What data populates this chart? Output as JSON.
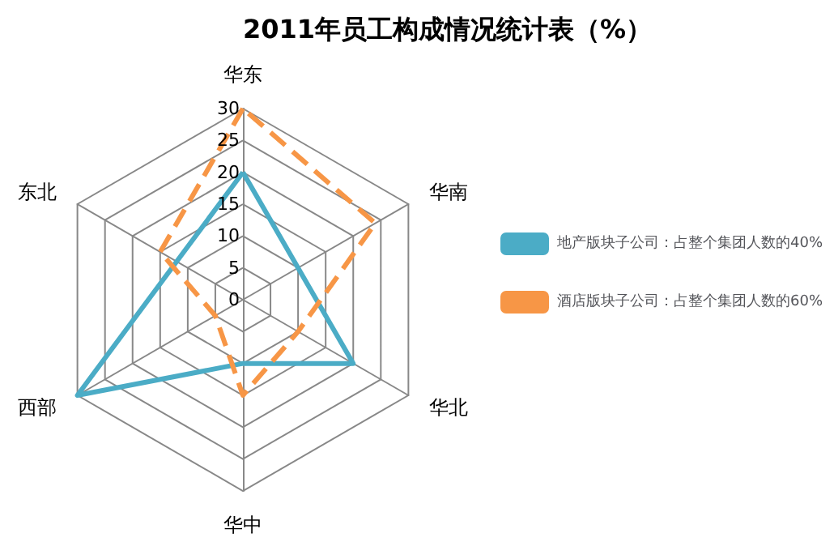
{
  "chart_data": {
    "type": "radar",
    "title": "2011年员工构成情况统计表（%）",
    "categories": [
      "华东",
      "华南",
      "华北",
      "华中",
      "西部",
      "东北"
    ],
    "ylim": [
      0,
      30
    ],
    "yticks": [
      0,
      5,
      10,
      15,
      20,
      25,
      30
    ],
    "legend": "right",
    "marker": "none",
    "series": [
      {
        "name": "地产版块子公司：占整个集团人数的40%",
        "color": "#4bacc6",
        "values": [
          20,
          10,
          20,
          10,
          30,
          12
        ],
        "line_style": "solid"
      },
      {
        "name": "酒店版块子公司：占整个集团人数的60%",
        "color": "#f79646",
        "values": [
          30,
          24,
          10,
          15,
          5,
          15
        ],
        "line_style": "dashed"
      }
    ]
  }
}
